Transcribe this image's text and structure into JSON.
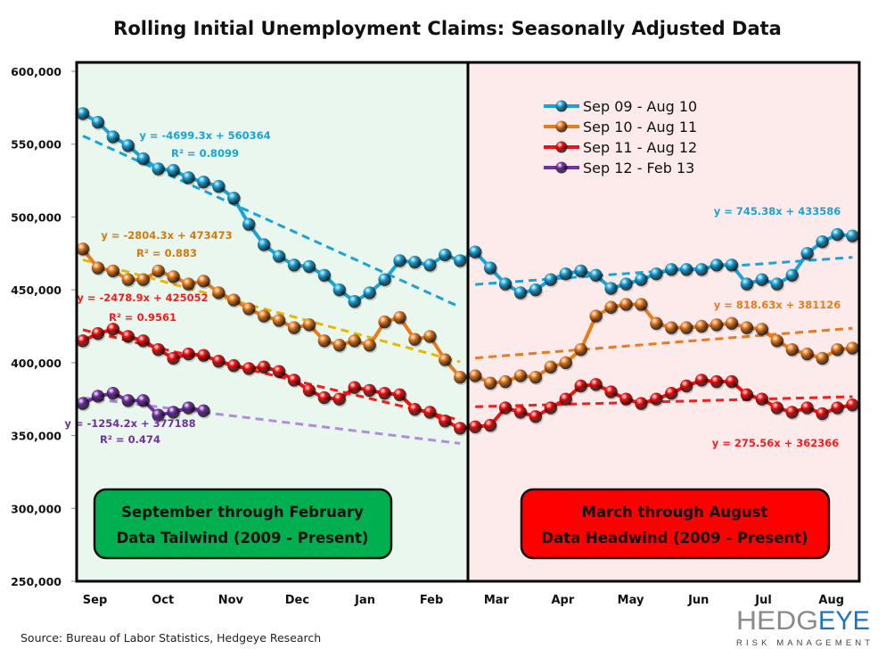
{
  "chart_data": {
    "type": "line",
    "title": "Rolling Initial Unemployment Claims: Seasonally Adjusted Data",
    "xlabel": "",
    "ylabel": "",
    "ylim": [
      250000,
      600000
    ],
    "yticks": [
      "600,000",
      "550,000",
      "500,000",
      "450,000",
      "400,000",
      "350,000",
      "300,000",
      "250,000"
    ],
    "ytick_values": [
      600000,
      550000,
      500000,
      450000,
      400000,
      350000,
      300000,
      250000
    ],
    "x_unit": "week (1-52)",
    "month_labels": [
      {
        "label": "Sep",
        "week": 1.8
      },
      {
        "label": "Oct",
        "week": 6.3
      },
      {
        "label": "Nov",
        "week": 10.8
      },
      {
        "label": "Dec",
        "week": 15.2
      },
      {
        "label": "Jan",
        "week": 19.7
      },
      {
        "label": "Feb",
        "week": 24.1
      },
      {
        "label": "Mar",
        "week": 28.4
      },
      {
        "label": "Apr",
        "week": 32.8
      },
      {
        "label": "May",
        "week": 37.3
      },
      {
        "label": "Jun",
        "week": 41.8
      },
      {
        "label": "Jul",
        "week": 46.1
      },
      {
        "label": "Aug",
        "week": 50.6
      }
    ],
    "grid": false,
    "legend_placement": "top-right",
    "regions": [
      {
        "label_line1": "September through  February",
        "label_line2": "Data Tailwind (2009 - Present)",
        "weeks": [
          1,
          26
        ],
        "background": "#eaf7ee",
        "box_color": "#00b050"
      },
      {
        "label_line1": "March through  August",
        "label_line2": "Data Headwind  (2009 - Present)",
        "weeks": [
          27,
          52
        ],
        "background": "#fdeaea",
        "box_color": "#ff0000"
      }
    ],
    "series": [
      {
        "name": "Sep 09 - Aug 10",
        "color": "#1aa3d9",
        "values": [
          571000,
          565000,
          555000,
          549000,
          540000,
          533000,
          532000,
          527000,
          524000,
          521000,
          513000,
          495000,
          481000,
          473000,
          467000,
          466000,
          460000,
          450000,
          442000,
          448000,
          457000,
          470000,
          469000,
          467000,
          474000,
          470000,
          476000,
          465000,
          454000,
          448000,
          450000,
          457000,
          461000,
          463000,
          460000,
          451000,
          454000,
          457000,
          461000,
          464000,
          464000,
          464000,
          467000,
          467000,
          454000,
          457000,
          454000,
          460000,
          475000,
          483000,
          488000,
          487000
        ]
      },
      {
        "name": "Sep 10 - Aug 11",
        "color": "#e87b1e",
        "values": [
          478000,
          465000,
          463000,
          457000,
          457000,
          463000,
          459000,
          454000,
          456000,
          448000,
          443000,
          437000,
          432000,
          429000,
          424000,
          426000,
          415000,
          412000,
          415000,
          412000,
          428000,
          431000,
          416000,
          418000,
          402000,
          390000,
          391000,
          386000,
          387000,
          391000,
          390000,
          397000,
          400000,
          409000,
          432000,
          438000,
          440000,
          440000,
          427000,
          424000,
          424000,
          425000,
          426000,
          427000,
          424000,
          423000,
          415000,
          409000,
          406000,
          403000,
          409000,
          410000
        ]
      },
      {
        "name": "Sep 11 - Aug 12",
        "color": "#ee1111",
        "values": [
          415000,
          420000,
          423000,
          418000,
          415000,
          409000,
          403000,
          406000,
          405000,
          401000,
          398000,
          396000,
          397000,
          394000,
          388000,
          381000,
          376000,
          375000,
          383000,
          381000,
          379000,
          378000,
          368000,
          366000,
          360000,
          355000,
          356000,
          357000,
          369000,
          366000,
          363000,
          369000,
          375000,
          384000,
          385000,
          380000,
          375000,
          372000,
          375000,
          379000,
          384000,
          388000,
          387000,
          387000,
          378000,
          375000,
          369000,
          366000,
          369000,
          365000,
          369000,
          371000
        ]
      },
      {
        "name": "Sep 12 - Feb 13",
        "color": "#7030a0",
        "values": [
          372000,
          377000,
          379000,
          374000,
          374000,
          364000,
          366000,
          369000,
          367000
        ]
      }
    ],
    "trendlines": [
      {
        "series": 0,
        "weeks": [
          1,
          26
        ],
        "slope": -4699.3,
        "intercept": 560364,
        "color": "#1aa3d9",
        "equation": "y = -4699.3x + 560364",
        "r2": "R² = 0.8099"
      },
      {
        "series": 1,
        "weeks": [
          1,
          26
        ],
        "slope": -2804.3,
        "intercept": 473473,
        "color": "#e8b800",
        "label_color": "#d07a10",
        "equation": "y = -2804.3x + 473473",
        "r2": "R² = 0.883"
      },
      {
        "series": 2,
        "weeks": [
          1,
          26
        ],
        "slope": -2478.9,
        "intercept": 425052,
        "color": "#ff1a1a",
        "equation": "y = -2478.9x + 425052",
        "r2": "R² = 0.9561"
      },
      {
        "series": 3,
        "weeks": [
          1,
          26
        ],
        "slope": -1254.2,
        "intercept": 377188,
        "color": "#b08ce0",
        "label_color": "#7030a0",
        "equation": "y = -1254.2x + 377188",
        "r2": "R² = 0.474"
      },
      {
        "series": 0,
        "weeks": [
          27,
          52
        ],
        "slope": 745.38,
        "intercept": 433586,
        "color": "#1aa3d9",
        "equation": "y = 745.38x  + 433586",
        "r2": ""
      },
      {
        "series": 1,
        "weeks": [
          27,
          52
        ],
        "slope": 818.63,
        "intercept": 381126,
        "color": "#e87b1e",
        "equation": "y = 818.63x  + 381126",
        "r2": ""
      },
      {
        "series": 2,
        "weeks": [
          27,
          52
        ],
        "slope": 275.56,
        "intercept": 362366,
        "color": "#ff1a1a",
        "equation": "y = 275.56x  + 362366",
        "r2": ""
      }
    ]
  },
  "footer": {
    "source": "Source: Bureau of Labor Statistics, Hedgeye Research",
    "logo_text_1": "HEDG",
    "logo_text_2": "EYE",
    "logo_subtext": "RISK MANAGEMENT"
  }
}
